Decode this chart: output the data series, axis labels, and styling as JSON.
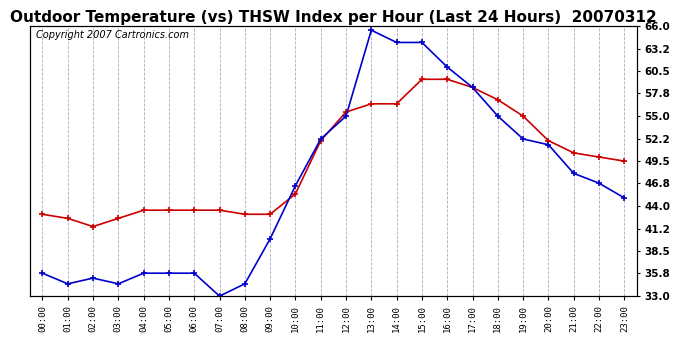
{
  "title": "Outdoor Temperature (vs) THSW Index per Hour (Last 24 Hours)  20070312",
  "copyright": "Copyright 2007 Cartronics.com",
  "hours": [
    "00:00",
    "01:00",
    "02:00",
    "03:00",
    "04:00",
    "05:00",
    "06:00",
    "07:00",
    "08:00",
    "09:00",
    "10:00",
    "11:00",
    "12:00",
    "13:00",
    "14:00",
    "15:00",
    "16:00",
    "17:00",
    "18:00",
    "19:00",
    "20:00",
    "21:00",
    "22:00",
    "23:00"
  ],
  "temp_blue": [
    35.8,
    34.5,
    35.2,
    34.5,
    35.8,
    35.8,
    35.8,
    33.0,
    34.5,
    40.0,
    46.5,
    52.2,
    55.0,
    65.5,
    64.0,
    64.0,
    61.0,
    58.5,
    55.0,
    52.2,
    51.5,
    48.0,
    46.8,
    45.0
  ],
  "thsw_red": [
    43.0,
    42.5,
    41.5,
    42.5,
    43.5,
    43.5,
    43.5,
    43.5,
    43.0,
    43.0,
    45.5,
    52.0,
    55.5,
    56.5,
    56.5,
    59.5,
    59.5,
    58.5,
    57.0,
    55.0,
    52.0,
    50.5,
    50.0,
    49.5
  ],
  "ylim_min": 33.0,
  "ylim_max": 66.0,
  "yticks": [
    33.0,
    35.8,
    38.5,
    41.2,
    44.0,
    46.8,
    49.5,
    52.2,
    55.0,
    57.8,
    60.5,
    63.2,
    66.0
  ],
  "blue_color": "#0000cc",
  "red_color": "#cc0000",
  "bg_color": "#ffffff",
  "grid_color": "#aaaacc",
  "title_fontsize": 11,
  "copyright_fontsize": 7
}
